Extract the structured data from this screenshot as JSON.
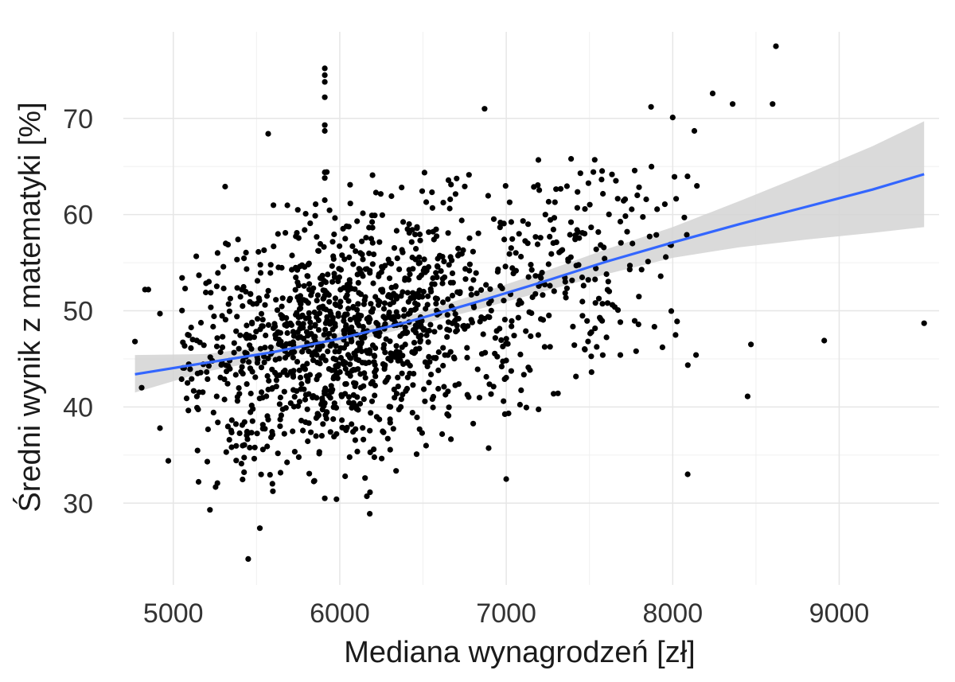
{
  "chart_data": {
    "type": "scatter",
    "xlabel": "Mediana wynagrodzeń [zł]",
    "ylabel": "Średni wynik z matematyki [%]",
    "xlim": [
      4700,
      9600
    ],
    "ylim": [
      21.5,
      79
    ],
    "x_ticks": [
      5000,
      6000,
      7000,
      8000,
      9000
    ],
    "y_ticks": [
      30,
      40,
      50,
      60,
      70
    ],
    "grid": true,
    "colors": {
      "points": "#000000",
      "trend": "#3366ff",
      "band": "#d3d3d3",
      "grid": "#e6e6e6"
    },
    "trend": {
      "method": "smooth",
      "x": [
        4770,
        5200,
        5600,
        6000,
        6400,
        6800,
        7200,
        7600,
        8000,
        8400,
        8800,
        9200,
        9510
      ],
      "y": [
        43.4,
        44.6,
        45.7,
        47.1,
        48.8,
        50.8,
        52.9,
        55.1,
        57.1,
        59.0,
        60.8,
        62.6,
        64.2
      ],
      "lower": [
        41.5,
        43.7,
        45.0,
        46.5,
        48.2,
        50.0,
        51.9,
        53.8,
        55.5,
        56.6,
        57.4,
        58.1,
        58.7
      ],
      "upper": [
        45.4,
        45.5,
        46.4,
        47.7,
        49.4,
        51.6,
        53.9,
        56.4,
        58.7,
        61.4,
        64.2,
        67.1,
        69.7
      ]
    },
    "highlight_points": {
      "x": [
        8620,
        8240,
        8360,
        8600,
        7870,
        8000,
        8130,
        9510,
        8910,
        8470,
        8450,
        8090,
        4770,
        4810,
        4850,
        4830,
        4920,
        4920,
        4970,
        5220,
        5450,
        5520,
        5570,
        6180,
        7000,
        6870,
        8070,
        8140,
        7780,
        5910,
        5910,
        5910,
        5910,
        5910,
        5910,
        5910,
        5910,
        5910,
        5910
      ],
      "y": [
        77.5,
        72.6,
        71.5,
        71.5,
        71.2,
        70.1,
        68.7,
        48.7,
        46.9,
        46.5,
        41.1,
        33.0,
        46.8,
        42.0,
        52.2,
        52.2,
        37.8,
        49.7,
        34.4,
        29.3,
        24.2,
        27.4,
        68.4,
        28.9,
        32.5,
        71.0,
        59.7,
        45.4,
        45.8,
        75.2,
        74.5,
        73.8,
        72.2,
        69.3,
        68.7,
        64.4,
        63.8,
        61.5,
        30.5
      ]
    }
  }
}
